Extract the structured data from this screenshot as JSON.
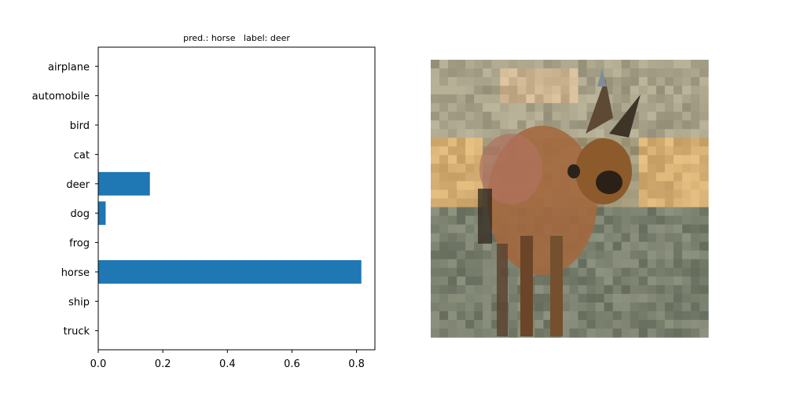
{
  "chart_data": {
    "type": "bar",
    "orientation": "horizontal",
    "title": "pred.: horse   label: deer",
    "categories": [
      "airplane",
      "automobile",
      "bird",
      "cat",
      "deer",
      "dog",
      "frog",
      "horse",
      "ship",
      "truck"
    ],
    "values": [
      0.0,
      0.0,
      0.0,
      0.0,
      0.16,
      0.023,
      0.0,
      0.815,
      0.0,
      0.0
    ],
    "xlabel": "",
    "ylabel": "",
    "xlim": [
      0.0,
      0.857
    ],
    "xticks": [
      0.0,
      0.2,
      0.4,
      0.6,
      0.8
    ],
    "xtick_labels": [
      "0.0",
      "0.2",
      "0.4",
      "0.6",
      "0.8"
    ],
    "grid": false,
    "bar_color": "#1f77b4"
  },
  "image_panel": {
    "icon": "deer-photo-icon",
    "pixel_grid": "32x32"
  }
}
